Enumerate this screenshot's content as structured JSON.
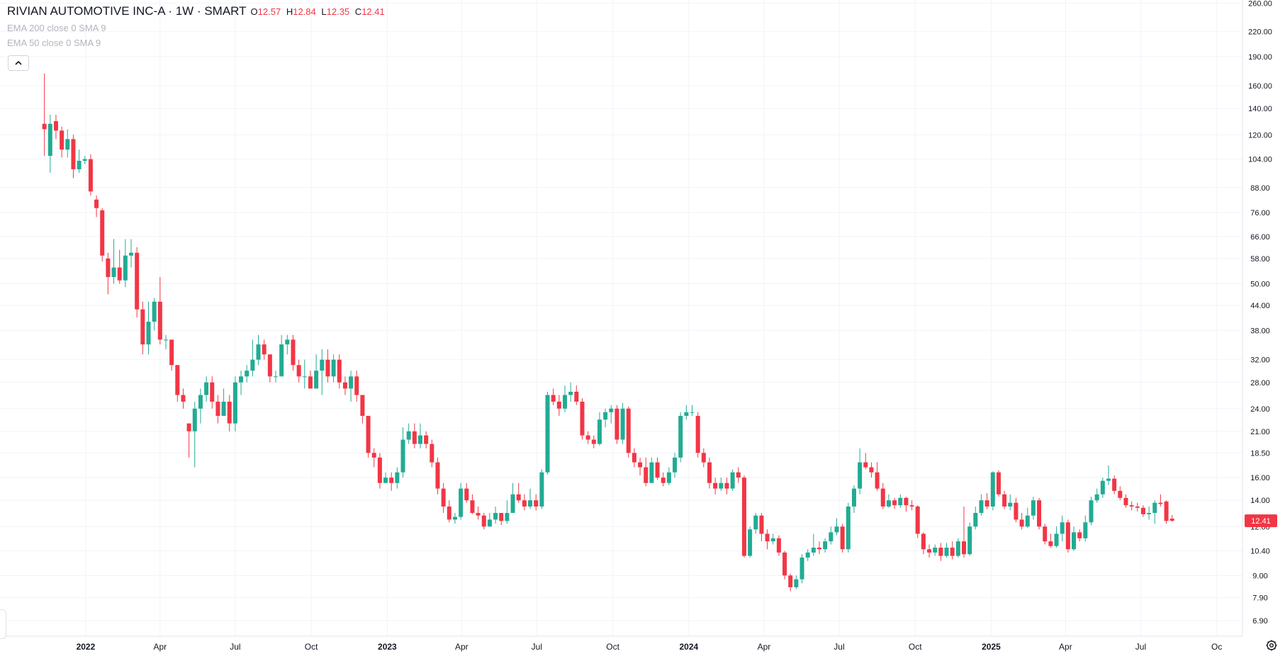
{
  "legend": {
    "symbol": "RIVIAN AUTOMOTIVE INC-A · 1W · SMART",
    "o_label": "O",
    "o_value": "12.57",
    "h_label": "H",
    "h_value": "12.84",
    "l_label": "L",
    "l_value": "12.35",
    "c_label": "C",
    "c_value": "12.41",
    "indicator1": "EMA 200 close 0 SMA 9",
    "indicator2": "EMA 50 close 0 SMA 9"
  },
  "colors": {
    "up": "#22ab94",
    "down": "#f23645",
    "grid": "#f0f3fa",
    "text": "#131722"
  },
  "icons": {
    "collapse": "chevron-up-icon",
    "settings": "gear-icon"
  },
  "chart_data": {
    "type": "candlestick",
    "scale": "log",
    "ylim": [
      6.3,
      265
    ],
    "y_ticks": [
      "260.00",
      "220.00",
      "190.00",
      "160.00",
      "140.00",
      "120.00",
      "104.00",
      "88.00",
      "76.00",
      "66.00",
      "58.00",
      "50.00",
      "44.00",
      "38.00",
      "32.00",
      "28.00",
      "24.00",
      "21.00",
      "18.50",
      "16.00",
      "14.00",
      "12.00",
      "10.40",
      "9.00",
      "7.90",
      "6.90"
    ],
    "x_ticks": [
      {
        "label": "2022",
        "date": "2022-01-01"
      },
      {
        "label": "Apr",
        "date": "2022-04-01"
      },
      {
        "label": "Jul",
        "date": "2022-07-01"
      },
      {
        "label": "Oct",
        "date": "2022-10-01"
      },
      {
        "label": "2023",
        "date": "2023-01-01"
      },
      {
        "label": "Apr",
        "date": "2023-04-01"
      },
      {
        "label": "Jul",
        "date": "2023-07-01"
      },
      {
        "label": "Oct",
        "date": "2023-10-01"
      },
      {
        "label": "2024",
        "date": "2024-01-01"
      },
      {
        "label": "Apr",
        "date": "2024-04-01"
      },
      {
        "label": "Jul",
        "date": "2024-07-01"
      },
      {
        "label": "Oct",
        "date": "2024-10-01"
      },
      {
        "label": "2025",
        "date": "2025-01-01"
      },
      {
        "label": "Apr",
        "date": "2025-04-01"
      },
      {
        "label": "Jul",
        "date": "2025-07-01"
      },
      {
        "label": "Oc",
        "date": "2025-10-01"
      }
    ],
    "last_price": "12.41",
    "x_range": [
      "2021-10-15",
      "2025-10-15"
    ],
    "candles": [
      [
        "2021-11-12",
        128,
        124,
        172,
        106
      ],
      [
        "2021-11-19",
        106,
        128,
        135,
        96
      ],
      [
        "2021-11-26",
        130,
        123,
        135,
        117
      ],
      [
        "2021-12-03",
        123,
        110,
        126,
        105
      ],
      [
        "2021-12-10",
        110,
        117,
        124,
        105
      ],
      [
        "2021-12-17",
        117,
        98,
        120,
        93
      ],
      [
        "2021-12-24",
        98,
        103,
        110,
        96
      ],
      [
        "2021-12-31",
        103,
        104,
        106,
        101
      ],
      [
        "2022-01-07",
        104,
        86,
        107,
        84
      ],
      [
        "2022-01-14",
        82,
        78,
        84,
        74
      ],
      [
        "2022-01-21",
        77,
        59,
        78,
        57
      ],
      [
        "2022-01-28",
        58,
        52,
        60,
        47
      ],
      [
        "2022-02-04",
        52,
        55,
        65,
        50
      ],
      [
        "2022-02-11",
        55,
        51,
        61,
        50
      ],
      [
        "2022-02-18",
        51,
        59,
        65,
        49
      ],
      [
        "2022-02-25",
        59,
        60,
        65,
        55
      ],
      [
        "2022-03-04",
        60,
        43,
        62,
        41
      ],
      [
        "2022-03-11",
        43,
        35,
        45,
        33
      ],
      [
        "2022-03-18",
        35,
        40,
        45,
        33
      ],
      [
        "2022-03-25",
        40,
        45,
        46,
        38
      ],
      [
        "2022-04-01",
        45,
        36,
        52,
        35
      ],
      [
        "2022-04-08",
        36,
        36,
        37,
        34
      ],
      [
        "2022-04-15",
        36,
        31,
        36,
        30
      ],
      [
        "2022-04-22",
        31,
        26,
        31,
        25
      ],
      [
        "2022-04-29",
        26,
        25,
        27,
        24
      ],
      [
        "2022-05-06",
        22,
        21,
        22,
        18
      ],
      [
        "2022-05-13",
        21,
        24,
        25,
        17
      ],
      [
        "2022-05-20",
        24,
        26,
        27,
        22
      ],
      [
        "2022-05-27",
        26,
        28,
        29,
        25
      ],
      [
        "2022-06-03",
        28,
        25,
        29,
        24
      ],
      [
        "2022-06-10",
        25,
        23,
        26,
        22
      ],
      [
        "2022-06-17",
        23,
        25,
        27,
        23
      ],
      [
        "2022-06-24",
        25,
        22,
        26,
        21
      ],
      [
        "2022-07-01",
        22,
        28,
        29,
        21
      ],
      [
        "2022-07-08",
        28,
        29,
        30,
        26
      ],
      [
        "2022-07-15",
        29,
        30,
        31,
        28
      ],
      [
        "2022-07-22",
        30,
        32,
        36,
        29
      ],
      [
        "2022-07-29",
        32,
        35,
        37,
        31
      ],
      [
        "2022-08-05",
        35,
        33,
        36,
        32
      ],
      [
        "2022-08-12",
        33,
        29,
        33,
        28
      ],
      [
        "2022-08-19",
        29,
        29,
        30,
        28
      ],
      [
        "2022-08-26",
        29,
        35,
        37,
        29
      ],
      [
        "2022-09-02",
        35,
        36,
        37,
        33
      ],
      [
        "2022-09-09",
        36,
        31,
        37,
        30
      ],
      [
        "2022-09-16",
        31,
        29,
        32,
        28
      ],
      [
        "2022-09-23",
        29,
        29,
        32,
        27
      ],
      [
        "2022-09-30",
        29,
        27,
        30,
        27
      ],
      [
        "2022-10-07",
        27,
        30,
        33,
        27
      ],
      [
        "2022-10-14",
        30,
        32,
        34,
        26
      ],
      [
        "2022-10-21",
        32,
        29,
        34,
        28
      ],
      [
        "2022-10-28",
        29,
        32,
        33,
        28
      ],
      [
        "2022-11-04",
        32,
        28,
        33,
        27
      ],
      [
        "2022-11-11",
        28,
        27,
        29,
        26
      ],
      [
        "2022-11-18",
        27,
        29,
        30,
        25
      ],
      [
        "2022-11-25",
        29,
        26,
        30,
        25
      ],
      [
        "2022-12-02",
        26,
        23,
        26,
        22
      ],
      [
        "2022-12-09",
        23,
        18.5,
        23,
        18
      ],
      [
        "2022-12-16",
        18.5,
        18,
        19,
        17
      ],
      [
        "2022-12-23",
        18,
        15.5,
        18.5,
        15
      ],
      [
        "2022-12-30",
        15.5,
        16,
        16.5,
        15.5
      ],
      [
        "2023-01-06",
        16,
        15.5,
        16.5,
        14.8
      ],
      [
        "2023-01-13",
        15.5,
        16.5,
        17,
        15
      ],
      [
        "2023-01-20",
        16.5,
        20,
        21.5,
        16
      ],
      [
        "2023-01-27",
        20,
        21,
        22,
        19.5
      ],
      [
        "2023-02-03",
        21,
        19.5,
        22,
        19
      ],
      [
        "2023-02-10",
        19.5,
        20.5,
        22,
        19
      ],
      [
        "2023-02-17",
        20.5,
        19.5,
        21,
        19
      ],
      [
        "2023-02-24",
        19.5,
        17.5,
        20,
        17
      ],
      [
        "2023-03-03",
        17.5,
        15,
        18,
        14.5
      ],
      [
        "2023-03-10",
        15,
        13.5,
        15.5,
        13
      ],
      [
        "2023-03-17",
        13.5,
        12.5,
        14,
        12.3
      ],
      [
        "2023-03-24",
        12.5,
        12.7,
        13,
        12.2
      ],
      [
        "2023-03-31",
        12.7,
        15,
        15.5,
        12.5
      ],
      [
        "2023-04-07",
        15,
        14,
        15.5,
        13.8
      ],
      [
        "2023-04-14",
        14,
        13,
        14.5,
        12.9
      ],
      [
        "2023-04-21",
        13,
        12.8,
        13.5,
        12.5
      ],
      [
        "2023-04-28",
        12.8,
        12,
        13,
        11.8
      ],
      [
        "2023-05-05",
        12,
        12.5,
        13,
        12
      ],
      [
        "2023-05-12",
        12.5,
        13,
        13.5,
        12.2
      ],
      [
        "2023-05-19",
        13,
        12.4,
        13,
        12.1
      ],
      [
        "2023-05-26",
        12.4,
        13,
        14,
        12.2
      ],
      [
        "2023-06-02",
        13,
        14.5,
        15.5,
        13
      ],
      [
        "2023-06-09",
        14.5,
        14,
        15.5,
        13.8
      ],
      [
        "2023-06-16",
        14,
        13.5,
        14.5,
        13.2
      ],
      [
        "2023-06-23",
        13.5,
        14,
        15,
        13.3
      ],
      [
        "2023-06-30",
        14,
        13.5,
        14.5,
        13.2
      ],
      [
        "2023-07-07",
        13.5,
        16.5,
        16.8,
        13.3
      ],
      [
        "2023-07-14",
        16.5,
        26,
        26.5,
        16.3
      ],
      [
        "2023-07-21",
        26,
        25,
        27,
        24.5
      ],
      [
        "2023-07-28",
        25,
        24,
        26,
        23
      ],
      [
        "2023-08-04",
        24,
        26,
        27.5,
        23.5
      ],
      [
        "2023-08-11",
        26,
        26.5,
        28,
        25
      ],
      [
        "2023-08-18",
        26.5,
        25,
        27.5,
        24.5
      ],
      [
        "2023-08-25",
        25,
        20.5,
        25.5,
        20
      ],
      [
        "2023-09-01",
        20.5,
        20,
        21,
        19.5
      ],
      [
        "2023-09-08",
        20,
        19.5,
        20.5,
        19
      ],
      [
        "2023-09-15",
        19.5,
        22.5,
        23.5,
        19.3
      ],
      [
        "2023-09-22",
        22.5,
        23.5,
        24,
        21.5
      ],
      [
        "2023-09-29",
        23.5,
        24,
        24.5,
        22
      ],
      [
        "2023-10-06",
        24,
        20,
        24.5,
        19.5
      ],
      [
        "2023-10-13",
        20,
        24,
        24.8,
        19.5
      ],
      [
        "2023-10-20",
        24,
        18.5,
        24.3,
        18
      ],
      [
        "2023-10-27",
        18.5,
        17.5,
        19,
        17
      ],
      [
        "2023-11-03",
        17.5,
        17,
        18,
        16.2
      ],
      [
        "2023-11-10",
        17,
        15.5,
        18,
        15.2
      ],
      [
        "2023-11-17",
        15.5,
        17.5,
        18,
        15.5
      ],
      [
        "2023-11-24",
        17.5,
        16,
        18,
        15.8
      ],
      [
        "2023-12-01",
        16,
        15.5,
        16.5,
        15.2
      ],
      [
        "2023-12-08",
        15.5,
        16.5,
        17,
        15.3
      ],
      [
        "2023-12-15",
        16.5,
        18,
        18.5,
        16
      ],
      [
        "2023-12-22",
        18,
        23,
        23.5,
        17.5
      ],
      [
        "2023-12-29",
        23,
        23.5,
        24.5,
        22.5
      ],
      [
        "2024-01-05",
        23.5,
        23.5,
        24.5,
        23
      ],
      [
        "2024-01-12",
        23,
        18.5,
        23.5,
        18
      ],
      [
        "2024-01-19",
        18.5,
        17.5,
        19,
        17
      ],
      [
        "2024-01-26",
        17.5,
        15.5,
        18,
        15
      ],
      [
        "2024-02-02",
        15.5,
        15,
        16,
        14.5
      ],
      [
        "2024-02-09",
        15,
        15.5,
        16,
        14.8
      ],
      [
        "2024-02-16",
        15.5,
        15,
        16,
        14.5
      ],
      [
        "2024-02-23",
        15,
        16.5,
        16.8,
        14.8
      ],
      [
        "2024-03-01",
        16.5,
        16,
        17,
        15.5
      ],
      [
        "2024-03-08",
        16,
        10.1,
        16.2,
        10
      ],
      [
        "2024-03-15",
        10.1,
        11.8,
        12,
        10
      ],
      [
        "2024-03-22",
        11.8,
        12.8,
        13,
        11.5
      ],
      [
        "2024-03-29",
        12.8,
        11.5,
        13,
        11
      ],
      [
        "2024-04-05",
        11.5,
        11,
        11.8,
        10.5
      ],
      [
        "2024-04-12",
        11,
        11.2,
        11.5,
        10.8
      ],
      [
        "2024-04-19",
        11.2,
        10.3,
        11.4,
        10.1
      ],
      [
        "2024-04-26",
        10.3,
        9,
        10.4,
        8.8
      ],
      [
        "2024-05-03",
        9,
        8.4,
        9.1,
        8.2
      ],
      [
        "2024-05-10",
        8.4,
        8.8,
        9,
        8.3
      ],
      [
        "2024-05-17",
        8.8,
        10,
        10.2,
        8.6
      ],
      [
        "2024-05-24",
        10,
        10.3,
        10.5,
        9.8
      ],
      [
        "2024-05-31",
        10.3,
        10.6,
        11.5,
        10.1
      ],
      [
        "2024-06-07",
        10.6,
        10.5,
        11,
        10.2
      ],
      [
        "2024-06-14",
        10.5,
        11,
        11.2,
        10.3
      ],
      [
        "2024-06-21",
        11,
        11.6,
        12,
        10.8
      ],
      [
        "2024-06-28",
        11.6,
        12,
        12.6,
        11.4
      ],
      [
        "2024-07-05",
        12,
        10.5,
        12.2,
        10.3
      ],
      [
        "2024-07-12",
        10.5,
        13.5,
        13.8,
        10.3
      ],
      [
        "2024-07-19",
        13.5,
        15,
        15.3,
        13
      ],
      [
        "2024-07-26",
        15,
        17.5,
        19,
        14.5
      ],
      [
        "2024-08-02",
        17.5,
        17,
        18.5,
        16.8
      ],
      [
        "2024-08-09",
        17,
        16.5,
        17.5,
        16
      ],
      [
        "2024-08-16",
        16.5,
        15,
        17.5,
        14.8
      ],
      [
        "2024-08-23",
        15,
        13.5,
        15.5,
        13.3
      ],
      [
        "2024-08-30",
        13.5,
        14,
        14.5,
        13.4
      ],
      [
        "2024-09-06",
        14,
        13.6,
        14.2,
        13.3
      ],
      [
        "2024-09-13",
        13.6,
        14.2,
        14.5,
        13.4
      ],
      [
        "2024-09-20",
        14.2,
        13.6,
        14.3,
        13.1
      ],
      [
        "2024-09-27",
        13.6,
        13.5,
        14,
        13.2
      ],
      [
        "2024-10-04",
        13.5,
        11.5,
        13.6,
        11.2
      ],
      [
        "2024-10-11",
        11.5,
        10.5,
        11.6,
        10.2
      ],
      [
        "2024-10-18",
        10.5,
        10.3,
        10.8,
        10
      ],
      [
        "2024-10-25",
        10.3,
        10.6,
        10.8,
        10.1
      ],
      [
        "2024-11-01",
        10.6,
        10.1,
        10.9,
        9.8
      ],
      [
        "2024-11-08",
        10.1,
        10.6,
        10.9,
        10
      ],
      [
        "2024-11-15",
        10.6,
        10.1,
        11,
        9.9
      ],
      [
        "2024-11-22",
        10.1,
        11,
        11.2,
        10
      ],
      [
        "2024-11-29",
        11,
        10.2,
        13.5,
        10
      ],
      [
        "2024-12-06",
        10.2,
        12,
        12.3,
        10.1
      ],
      [
        "2024-12-13",
        12,
        13,
        13.5,
        11.8
      ],
      [
        "2024-12-20",
        13,
        14,
        14.5,
        12.8
      ],
      [
        "2024-12-27",
        14,
        13.5,
        14.6,
        13.3
      ],
      [
        "2025-01-03",
        13.5,
        16.5,
        16.6,
        13.2
      ],
      [
        "2025-01-10",
        16.5,
        14.5,
        16.7,
        14.3
      ],
      [
        "2025-01-17",
        14.5,
        13.5,
        14.8,
        13.3
      ],
      [
        "2025-01-24",
        13.5,
        13.8,
        14.5,
        13.2
      ],
      [
        "2025-01-31",
        13.8,
        12.5,
        14.2,
        12.3
      ],
      [
        "2025-02-07",
        12.5,
        12,
        13,
        11.8
      ],
      [
        "2025-02-14",
        12,
        12.8,
        13.4,
        11.9
      ],
      [
        "2025-02-21",
        12.8,
        14,
        14.3,
        12.5
      ],
      [
        "2025-02-28",
        14,
        12,
        14.2,
        11.8
      ],
      [
        "2025-03-07",
        12,
        11,
        12.2,
        10.8
      ],
      [
        "2025-03-14",
        11,
        10.7,
        11.5,
        10.6
      ],
      [
        "2025-03-21",
        10.7,
        11.5,
        12,
        10.6
      ],
      [
        "2025-03-28",
        11.5,
        12.3,
        12.8,
        11
      ],
      [
        "2025-04-04",
        12.3,
        10.5,
        12.5,
        10.3
      ],
      [
        "2025-04-11",
        10.5,
        11.6,
        12,
        10.4
      ],
      [
        "2025-04-18",
        11.6,
        11.2,
        11.8,
        11
      ],
      [
        "2025-04-25",
        11.2,
        12.3,
        12.8,
        11
      ],
      [
        "2025-05-02",
        12.3,
        14,
        14.3,
        12.1
      ],
      [
        "2025-05-09",
        14,
        14.5,
        15,
        13.8
      ],
      [
        "2025-05-16",
        14.5,
        15.7,
        16,
        14.2
      ],
      [
        "2025-05-23",
        15.7,
        15.9,
        17.2,
        15.3
      ],
      [
        "2025-05-30",
        15.9,
        14.8,
        16.2,
        14.5
      ],
      [
        "2025-06-06",
        14.8,
        14.2,
        15.2,
        14
      ],
      [
        "2025-06-13",
        14.2,
        13.6,
        14.5,
        13.4
      ],
      [
        "2025-06-20",
        13.6,
        13.5,
        13.9,
        13.2
      ],
      [
        "2025-06-27",
        13.5,
        13.4,
        13.8,
        13.1
      ],
      [
        "2025-07-04",
        13.4,
        12.9,
        13.6,
        12.7
      ],
      [
        "2025-07-11",
        12.9,
        13,
        13.5,
        12.5
      ],
      [
        "2025-07-18",
        13,
        13.8,
        14,
        12.2
      ],
      [
        "2025-07-25",
        13.8,
        13.7,
        14.5,
        13.5
      ],
      [
        "2025-08-01",
        13.9,
        12.4,
        14,
        12.2
      ],
      [
        "2025-08-08",
        12.57,
        12.41,
        12.84,
        12.35
      ]
    ]
  }
}
